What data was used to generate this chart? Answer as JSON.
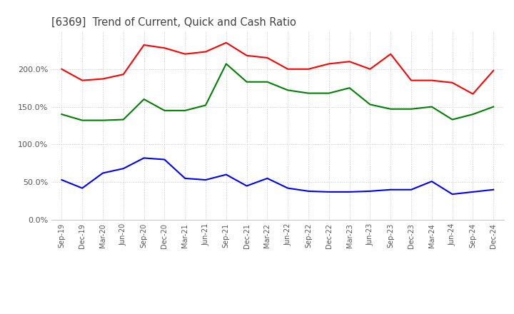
{
  "title": "[6369]  Trend of Current, Quick and Cash Ratio",
  "x_labels": [
    "Sep-19",
    "Dec-19",
    "Mar-20",
    "Jun-20",
    "Sep-20",
    "Dec-20",
    "Mar-21",
    "Jun-21",
    "Sep-21",
    "Dec-21",
    "Mar-22",
    "Jun-22",
    "Sep-22",
    "Dec-22",
    "Mar-23",
    "Jun-23",
    "Sep-23",
    "Dec-23",
    "Mar-24",
    "Jun-24",
    "Sep-24",
    "Dec-24"
  ],
  "current_ratio": [
    200,
    185,
    187,
    193,
    232,
    228,
    220,
    223,
    235,
    218,
    215,
    200,
    200,
    207,
    210,
    200,
    220,
    185,
    185,
    182,
    167,
    198
  ],
  "quick_ratio": [
    140,
    132,
    132,
    133,
    160,
    145,
    145,
    152,
    207,
    183,
    183,
    172,
    168,
    168,
    175,
    153,
    147,
    147,
    150,
    133,
    140,
    150
  ],
  "cash_ratio": [
    53,
    42,
    62,
    68,
    82,
    80,
    55,
    53,
    60,
    45,
    55,
    42,
    38,
    37,
    37,
    38,
    40,
    40,
    51,
    34,
    37,
    40
  ],
  "current_color": "#ff0000",
  "quick_color": "#008000",
  "cash_color": "#0000ff",
  "ylim": [
    0,
    250
  ],
  "yticks": [
    0,
    50,
    100,
    150,
    200
  ],
  "background_color": "#ffffff",
  "grid_color": "#c8c8c8"
}
